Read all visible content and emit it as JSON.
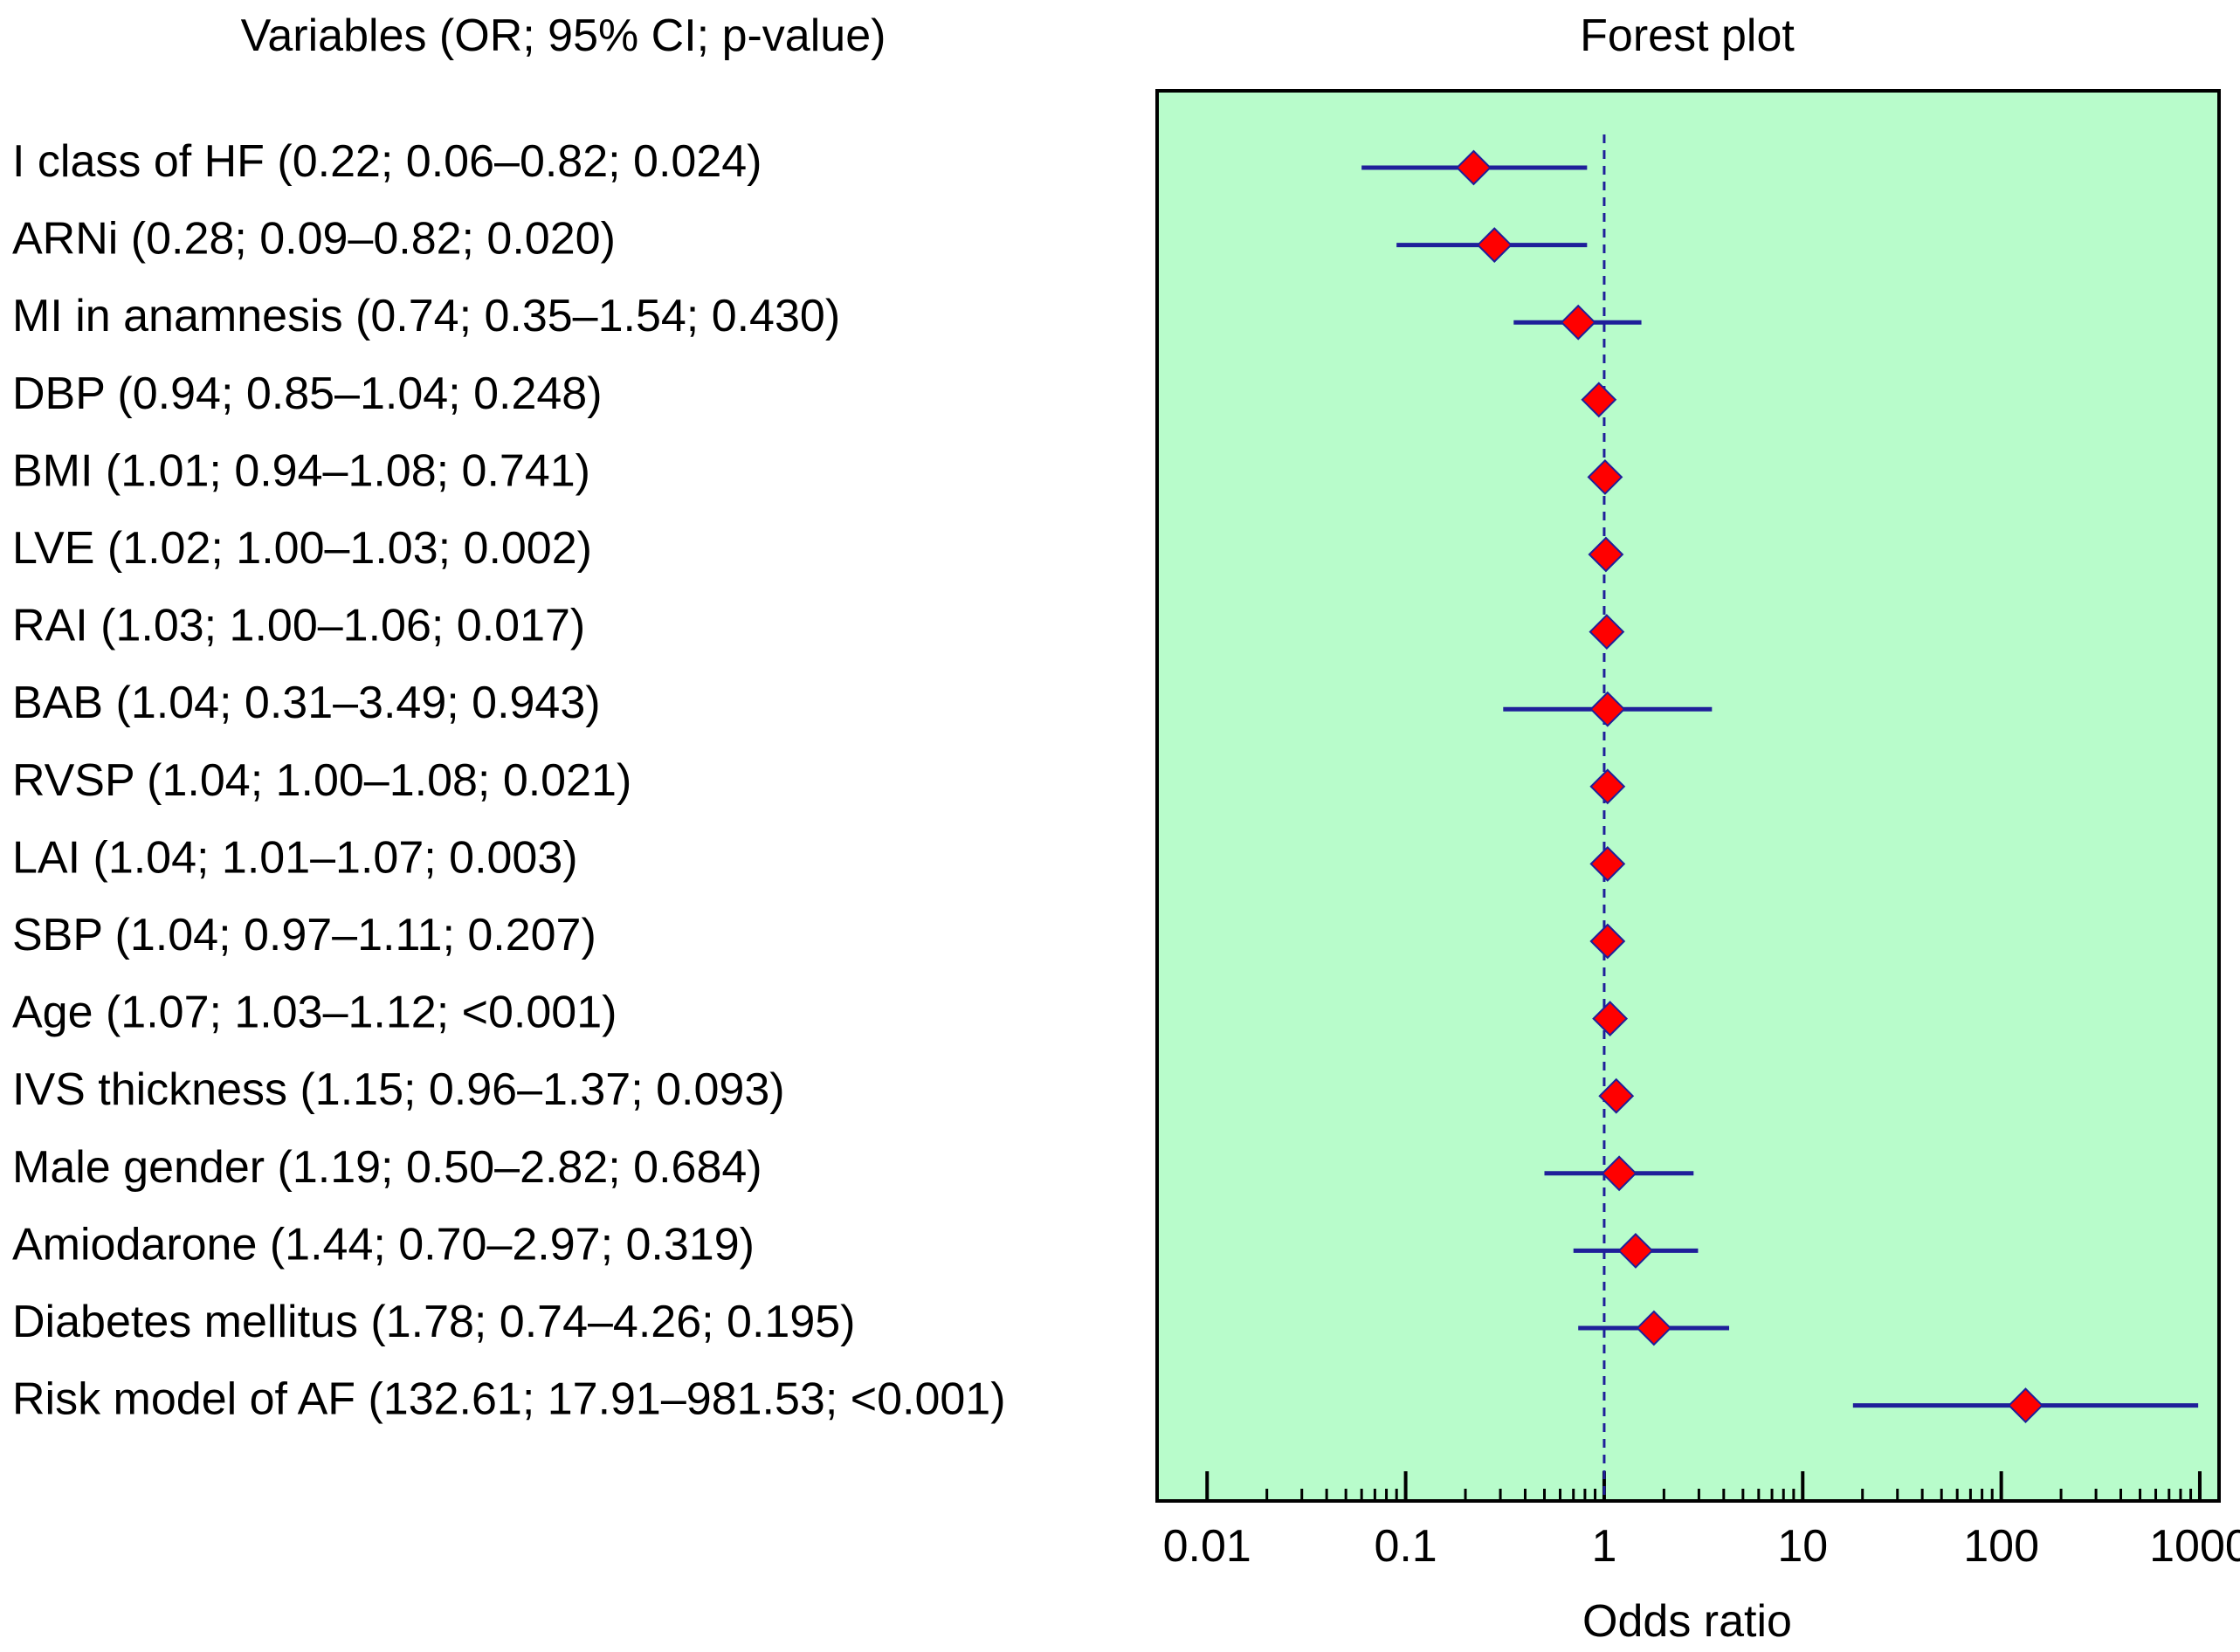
{
  "chart_data": {
    "type": "forest",
    "title": "Forest plot",
    "left_header": "Variables (OR; 95% CI; p-value)",
    "xlabel": "Odds ratio",
    "xscale": "log",
    "xlim": [
      0.0056,
      1250
    ],
    "reference_line": 1,
    "xticks": [
      {
        "value": 0.01,
        "label": "0.01"
      },
      {
        "value": 0.1,
        "label": "0.1"
      },
      {
        "value": 1,
        "label": "1"
      },
      {
        "value": 10,
        "label": "10"
      },
      {
        "value": 100,
        "label": "100"
      },
      {
        "value": 1000,
        "label": "1000"
      }
    ],
    "rows": [
      {
        "label": "I class of HF (0.22; 0.06–0.82; 0.024)",
        "or": 0.22,
        "lo": 0.06,
        "hi": 0.82,
        "p": "0.024"
      },
      {
        "label": "ARNi (0.28; 0.09–0.82; 0.020)",
        "or": 0.28,
        "lo": 0.09,
        "hi": 0.82,
        "p": "0.020"
      },
      {
        "label": "MI in anamnesis (0.74; 0.35–1.54; 0.430)",
        "or": 0.74,
        "lo": 0.35,
        "hi": 1.54,
        "p": "0.430"
      },
      {
        "label": "DBP  (0.94; 0.85–1.04; 0.248)",
        "or": 0.94,
        "lo": 0.85,
        "hi": 1.04,
        "p": "0.248"
      },
      {
        "label": "BMI (1.01; 0.94–1.08; 0.741)",
        "or": 1.01,
        "lo": 0.94,
        "hi": 1.08,
        "p": "0.741"
      },
      {
        "label": "LVE (1.02; 1.00–1.03; 0.002)",
        "or": 1.02,
        "lo": 1.0,
        "hi": 1.03,
        "p": "0.002"
      },
      {
        "label": "RAI (1.03; 1.00–1.06; 0.017)",
        "or": 1.03,
        "lo": 1.0,
        "hi": 1.06,
        "p": "0.017"
      },
      {
        "label": "BAB  (1.04; 0.31–3.49; 0.943)",
        "or": 1.04,
        "lo": 0.31,
        "hi": 3.49,
        "p": "0.943"
      },
      {
        "label": "RVSP (1.04; 1.00–1.08; 0.021)",
        "or": 1.04,
        "lo": 1.0,
        "hi": 1.08,
        "p": "0.021"
      },
      {
        "label": "LAI (1.04; 1.01–1.07; 0.003)",
        "or": 1.04,
        "lo": 1.01,
        "hi": 1.07,
        "p": "0.003"
      },
      {
        "label": "SBP  (1.04; 0.97–1.11; 0.207)",
        "or": 1.04,
        "lo": 0.97,
        "hi": 1.11,
        "p": "0.207"
      },
      {
        "label": "Age (1.07; 1.03–1.12; <0.001)",
        "or": 1.07,
        "lo": 1.03,
        "hi": 1.12,
        "p": "<0.001"
      },
      {
        "label": "IVS thickness (1.15; 0.96–1.37; 0.093)",
        "or": 1.15,
        "lo": 0.96,
        "hi": 1.37,
        "p": "0.093"
      },
      {
        "label": "Male gender (1.19; 0.50–2.82; 0.684)",
        "or": 1.19,
        "lo": 0.5,
        "hi": 2.82,
        "p": "0.684"
      },
      {
        "label": "Amiodarone  (1.44; 0.70–2.97; 0.319)",
        "or": 1.44,
        "lo": 0.7,
        "hi": 2.97,
        "p": "0.319"
      },
      {
        "label": "Diabetes mellitus  (1.78; 0.74–4.26; 0.195)",
        "or": 1.78,
        "lo": 0.74,
        "hi": 4.26,
        "p": "0.195"
      },
      {
        "label": "Risk model of AF (132.61; 17.91–981.53; <0.001)",
        "or": 132.61,
        "lo": 17.91,
        "hi": 981.53,
        "p": "<0.001"
      }
    ],
    "colors": {
      "panel_background": "#b8fccb",
      "ci_line": "#1f1f9a",
      "marker_fill": "#ff0000",
      "marker_edge": "#1f1f9a",
      "reference_line": "#1f1f9a",
      "axis": "#000000"
    }
  }
}
